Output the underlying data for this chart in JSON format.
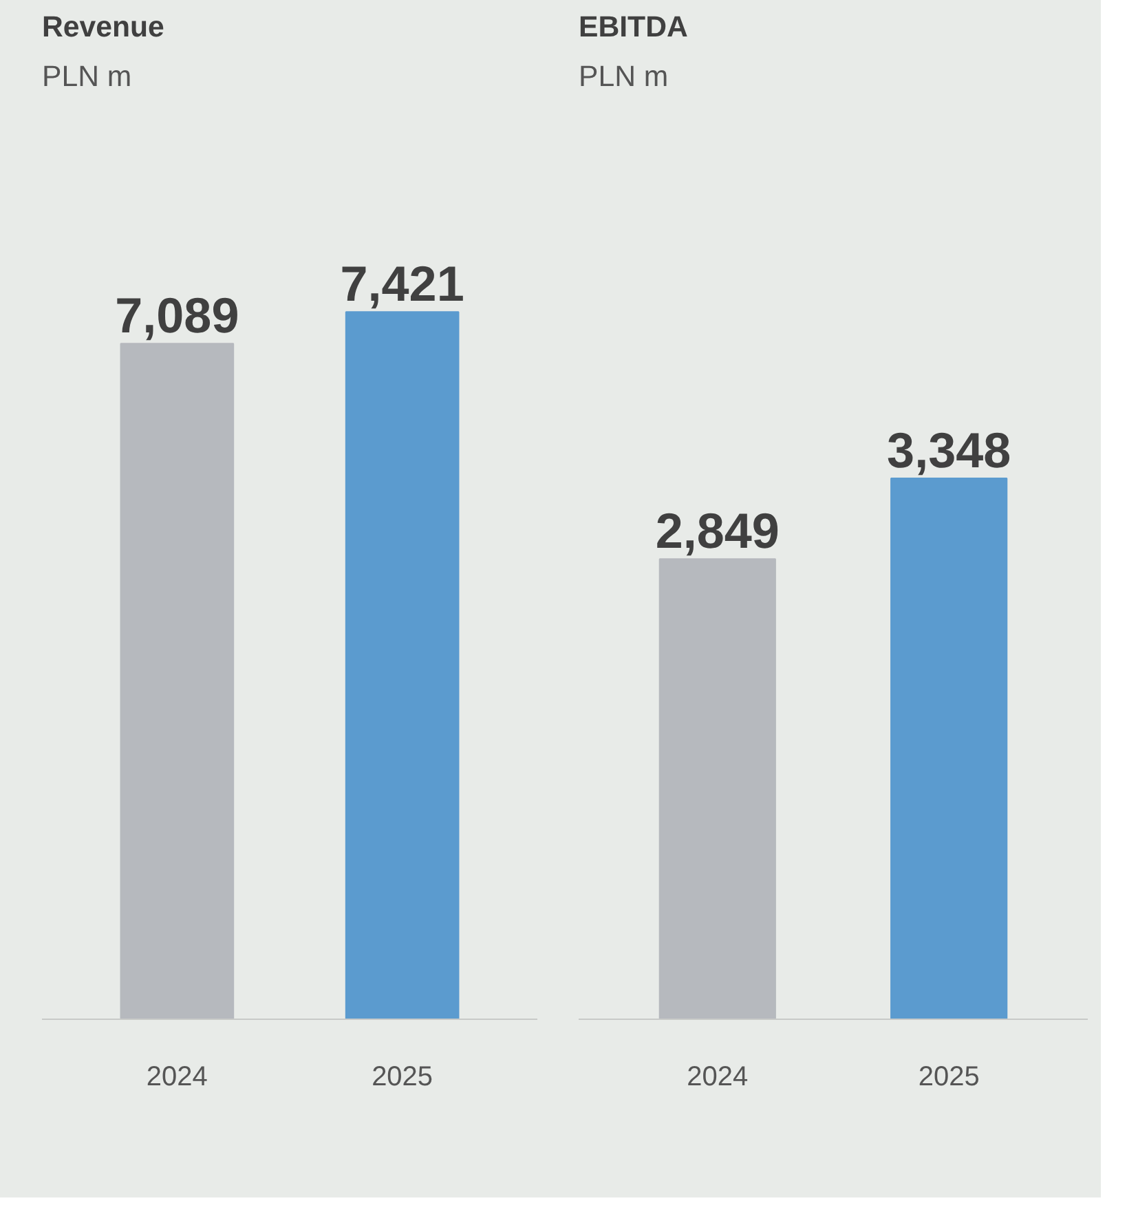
{
  "chart_data": [
    {
      "type": "bar",
      "title": "Revenue",
      "subtitle": "PLN m",
      "categories": [
        "2024",
        "2025"
      ],
      "values": [
        7089,
        7421
      ],
      "value_labels": [
        "7,089",
        "7,421"
      ],
      "colors": [
        "#b6b9be",
        "#5b9bcf"
      ]
    },
    {
      "type": "bar",
      "title": "EBITDA",
      "subtitle": "PLN m",
      "categories": [
        "2024",
        "2025"
      ],
      "values": [
        2849,
        3348
      ],
      "value_labels": [
        "2,849",
        "3,348"
      ],
      "colors": [
        "#b6b9be",
        "#5b9bcf"
      ]
    }
  ]
}
